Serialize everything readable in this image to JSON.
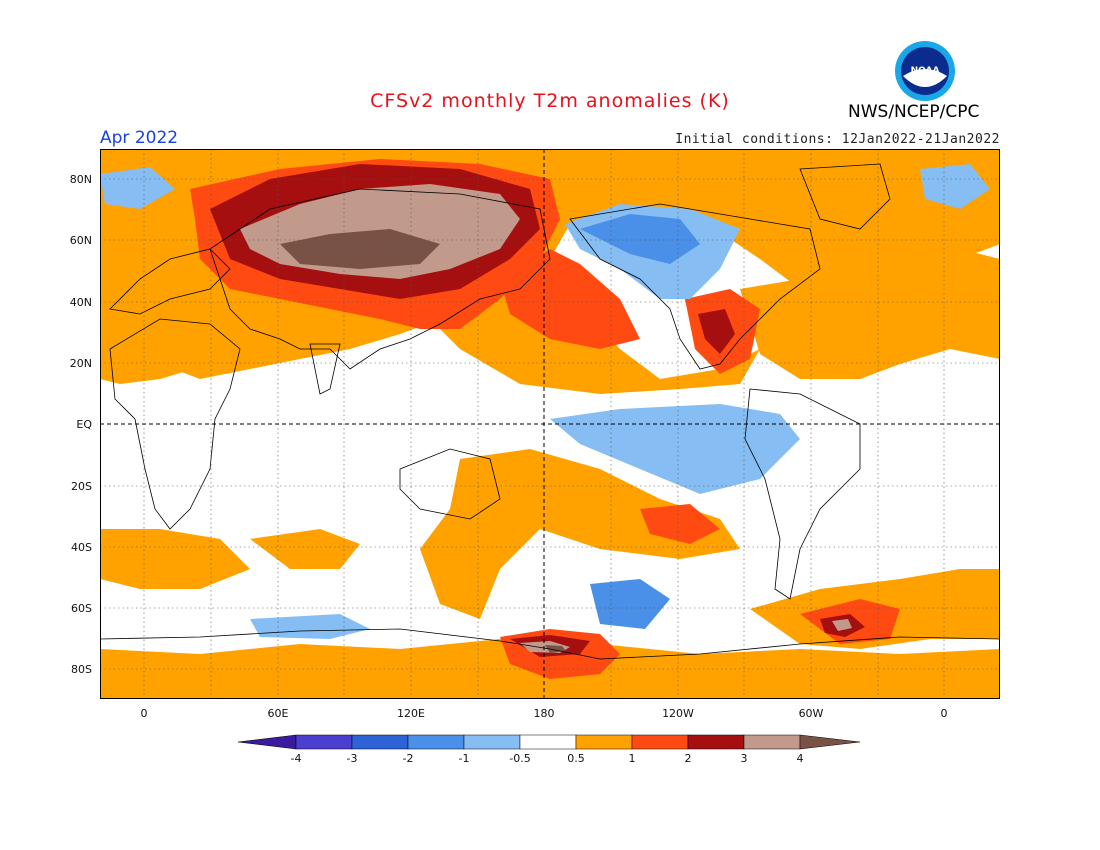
{
  "header": {
    "title": "CFSv2 monthly T2m anomalies (K)",
    "month": "Apr 2022",
    "initial_conditions": "Initial conditions: 12Jan2022-21Jan2022",
    "agency": "NWS/NCEP/CPC",
    "logo_text": "NOAA"
  },
  "map": {
    "lat_labels": [
      "80N",
      "60N",
      "40N",
      "20N",
      "EQ",
      "20S",
      "40S",
      "60S",
      "80S"
    ],
    "lon_labels": [
      "0",
      "60E",
      "120E",
      "180",
      "120W",
      "60W",
      "0"
    ]
  },
  "colorbar": {
    "labels": [
      "-4",
      "-3",
      "-2",
      "-1",
      "-0.5",
      "0.5",
      "1",
      "2",
      "3",
      "4"
    ],
    "colors": [
      "#3a1a9e",
      "#4a3fcf",
      "#2e63d8",
      "#4a8fe8",
      "#86bdf3",
      "#ffffff",
      "#ffa200",
      "#ff4a12",
      "#a50f0f",
      "#c19a8c",
      "#7a5245"
    ]
  },
  "palette": {
    "title_color": "#e8101a",
    "month_color": "#1c3fe0",
    "warm1": "#ffa200",
    "warm2": "#ff4a12",
    "warm3": "#a50f0f",
    "warm4": "#c19a8c",
    "warm5": "#7a5245",
    "cool1": "#86bdf3",
    "cool2": "#4a8fe8",
    "cool3": "#2e63d8"
  }
}
